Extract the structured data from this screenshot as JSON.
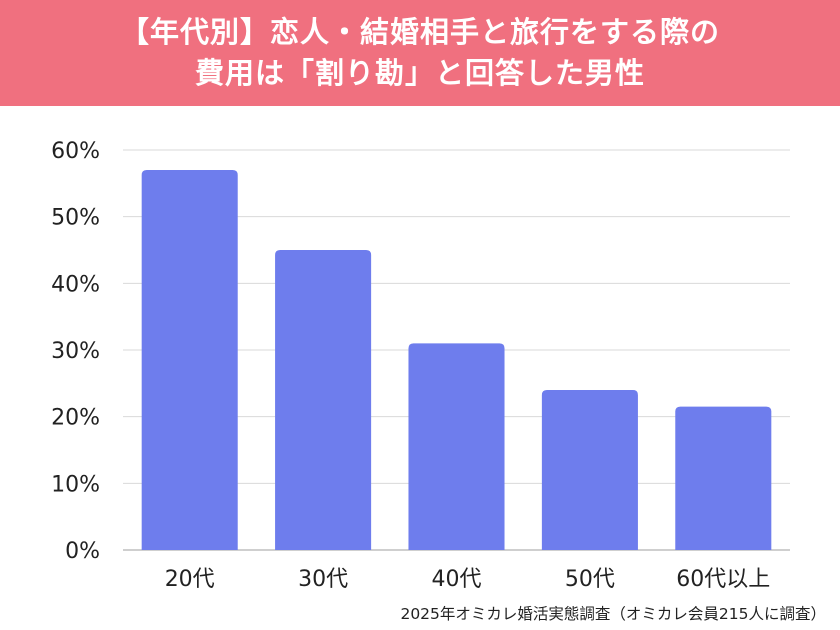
{
  "header": {
    "title_line1": "【年代別】恋人・結婚相手と旅行をする際の",
    "title_line2": "費用は「割り勘」と回答した男性"
  },
  "footnote": "2025年オミカレ婚活実態調査（オミカレ会員215人に調査）",
  "colors": {
    "header_bg": "#f0707f",
    "bar": "#6e7ded",
    "grid": "#d9d9d9",
    "axis_text": "#222222"
  },
  "chart_data": {
    "type": "bar",
    "categories": [
      "20代",
      "30代",
      "40代",
      "50代",
      "60代以上"
    ],
    "values": [
      57,
      45,
      31,
      24,
      21.5
    ],
    "title": "",
    "xlabel": "",
    "ylabel": "",
    "ylim": [
      0,
      60
    ],
    "yticks": [
      0,
      10,
      20,
      30,
      40,
      50,
      60
    ],
    "ytick_labels": [
      "0%",
      "10%",
      "20%",
      "30%",
      "40%",
      "50%",
      "60%"
    ],
    "grid": true,
    "legend": "none"
  }
}
